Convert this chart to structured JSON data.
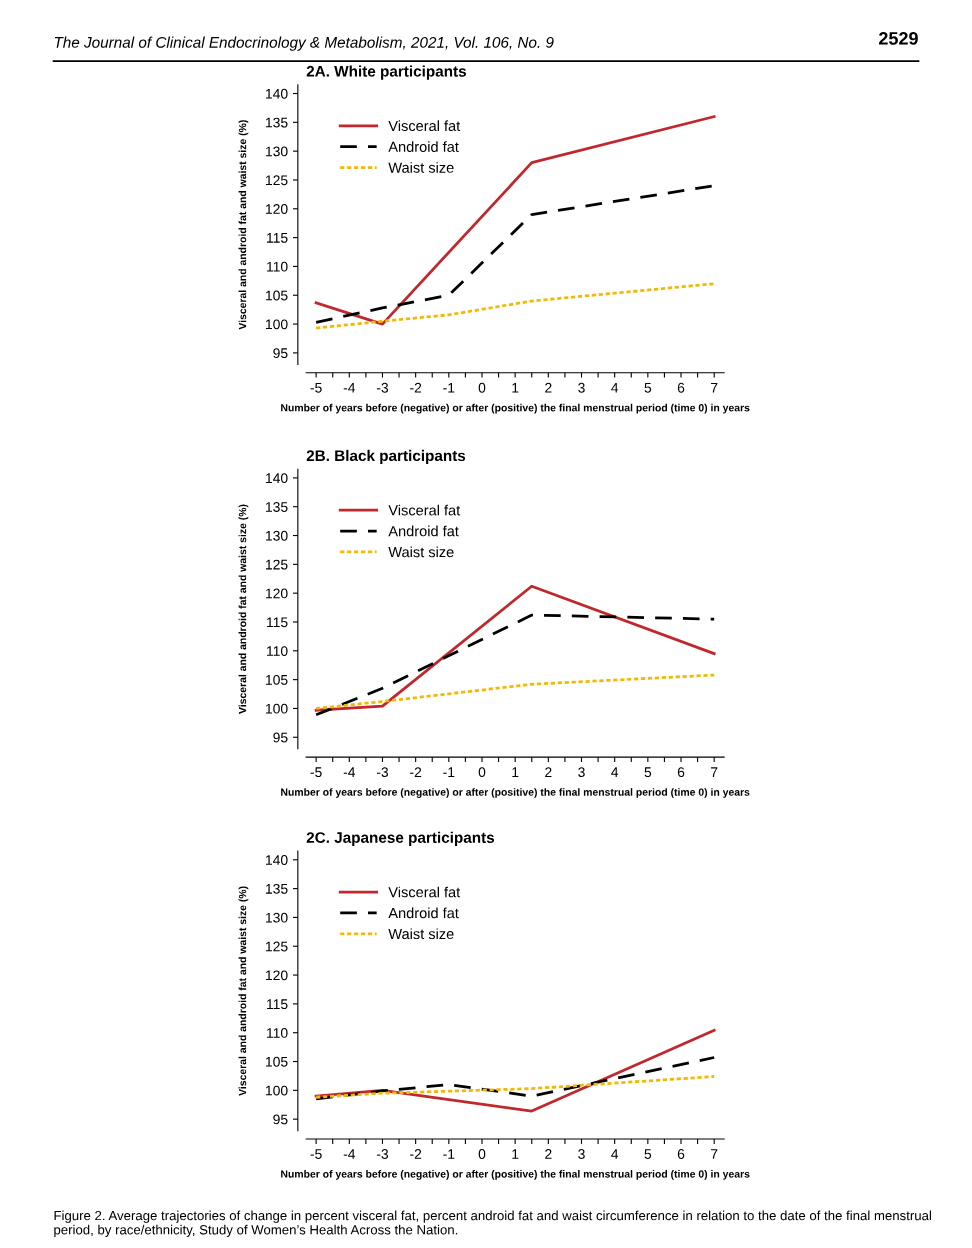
{
  "chart_data": [
    {
      "type": "line",
      "title": "2A. White participants",
      "xlabel": "Number of years before (negative) or after (positive) the final menstrual period (time 0) in years",
      "ylabel": "Visceral and android fat and waist size (%)",
      "annotations": [
        "The Journal of Clinical Endocrinology & Metabolism, 2021, Vol. 106, No. 9",
        "2529"
      ],
      "xlim": [
        -5.3,
        7.3
      ],
      "ylim": [
        93,
        141.5
      ],
      "xticks": [
        -5,
        -4,
        -3,
        -2,
        -1,
        0,
        1,
        2,
        3,
        4,
        5,
        6,
        7,
        {
          "value": -4.5,
          "label": null
        },
        {
          "value": -3.5,
          "label": null
        },
        {
          "value": -2.5,
          "label": null
        },
        {
          "value": -1.5,
          "label": null
        },
        {
          "value": -0.5,
          "label": null
        },
        {
          "value": 0.5,
          "label": null
        },
        {
          "value": 1.5,
          "label": null
        },
        {
          "value": 2.5,
          "label": null
        },
        {
          "value": 3.5,
          "label": null
        },
        {
          "value": 4.5,
          "label": null
        },
        {
          "value": 5.5,
          "label": null
        },
        {
          "value": 6.5,
          "label": null
        }
      ],
      "yticks": [
        95,
        100,
        105,
        110,
        115,
        120,
        125,
        130,
        135,
        140
      ],
      "grid": false,
      "legend": "top left",
      "series": [
        {
          "name": "Visceral fat",
          "color": "#c0282d",
          "line_style": "solid",
          "x": [
            -5,
            -3,
            1.5,
            7
          ],
          "values": [
            103.7,
            100,
            128,
            136
          ]
        },
        {
          "name": "Android fat",
          "color": "#000000",
          "line_style": "dashed",
          "x": [
            -5,
            -3,
            -1,
            1.5,
            7
          ],
          "values": [
            100.3,
            102.8,
            105,
            119,
            124
          ]
        },
        {
          "name": "Waist size",
          "color": "#f5b800",
          "line_style": "dotted",
          "x": [
            -5,
            -3,
            -1,
            1.5,
            7
          ],
          "values": [
            99.3,
            100.5,
            101.6,
            104,
            107
          ]
        }
      ]
    },
    {
      "type": "line",
      "title": "2B. Black participants",
      "xlabel": "Number of years before (negative) or after (positive) the final menstrual period (time 0) in years",
      "ylabel": "Visceral and android fat and waist size (%)",
      "xlim": [
        -5.3,
        7.3
      ],
      "ylim": [
        93,
        141.5
      ],
      "xticks": [
        -5,
        -4,
        -3,
        -2,
        -1,
        0,
        1,
        2,
        3,
        4,
        5,
        6,
        7,
        {
          "value": -4.5,
          "label": null
        },
        {
          "value": -3.5,
          "label": null
        },
        {
          "value": -2.5,
          "label": null
        },
        {
          "value": -1.5,
          "label": null
        },
        {
          "value": -0.5,
          "label": null
        },
        {
          "value": 0.5,
          "label": null
        },
        {
          "value": 1.5,
          "label": null
        },
        {
          "value": 2.5,
          "label": null
        },
        {
          "value": 3.5,
          "label": null
        },
        {
          "value": 4.5,
          "label": null
        },
        {
          "value": 5.5,
          "label": null
        },
        {
          "value": 6.5,
          "label": null
        }
      ],
      "yticks": [
        95,
        100,
        105,
        110,
        115,
        120,
        125,
        130,
        135,
        140
      ],
      "grid": false,
      "legend": "top left",
      "series": [
        {
          "name": "Visceral fat",
          "color": "#c0282d",
          "line_style": "solid",
          "x": [
            -5,
            -3,
            1.5,
            7
          ],
          "values": [
            99.7,
            100.4,
            121.2,
            109.5
          ]
        },
        {
          "name": "Android fat",
          "color": "#000000",
          "line_style": "dashed",
          "x": [
            -5,
            -3,
            1.5,
            7
          ],
          "values": [
            98.9,
            103.5,
            116.2,
            115.5
          ]
        },
        {
          "name": "Waist size",
          "color": "#f5b800",
          "line_style": "dotted",
          "x": [
            -5,
            -3,
            1.5,
            7
          ],
          "values": [
            100,
            101.2,
            104.2,
            105.8
          ]
        }
      ]
    },
    {
      "type": "line",
      "title": "2C. Japanese participants",
      "xlabel": "Number of years before (negative) or after (positive) the final menstrual period (time 0) in years",
      "ylabel": "Visceral and android fat and waist size (%)",
      "annotations": [
        "Figure 2. Average trajectories of change in percent visceral fat, percent android fat and waist circumference in relation to the date of the final menstrual period, by race/ethnicity, Study of Women’s Health Across the Nation."
      ],
      "xlim": [
        -5.3,
        7.3
      ],
      "ylim": [
        93,
        141.5
      ],
      "xticks": [
        -5,
        -4,
        -3,
        -2,
        -1,
        0,
        1,
        2,
        3,
        4,
        5,
        6,
        7,
        {
          "value": -4.5,
          "label": null
        },
        {
          "value": -3.5,
          "label": null
        },
        {
          "value": -2.5,
          "label": null
        },
        {
          "value": -1.5,
          "label": null
        },
        {
          "value": -0.5,
          "label": null
        },
        {
          "value": 0.5,
          "label": null
        },
        {
          "value": 1.5,
          "label": null
        },
        {
          "value": 2.5,
          "label": null
        },
        {
          "value": 3.5,
          "label": null
        },
        {
          "value": 4.5,
          "label": null
        },
        {
          "value": 5.5,
          "label": null
        },
        {
          "value": 6.5,
          "label": null
        }
      ],
      "yticks": [
        95,
        100,
        105,
        110,
        115,
        120,
        125,
        130,
        135,
        140
      ],
      "grid": false,
      "legend": "top left",
      "series": [
        {
          "name": "Visceral fat",
          "color": "#c0282d",
          "line_style": "solid",
          "x": [
            -5,
            -3,
            1.5,
            7
          ],
          "values": [
            99,
            100,
            96.4,
            110.4
          ]
        },
        {
          "name": "Android fat",
          "color": "#000000",
          "line_style": "dashed",
          "x": [
            -5,
            -3,
            -1,
            1.5,
            7
          ],
          "values": [
            98.5,
            99.9,
            101,
            99,
            105.7
          ]
        },
        {
          "name": "Waist size",
          "color": "#f5b800",
          "line_style": "dotted",
          "x": [
            -5,
            -3,
            1.5,
            7
          ],
          "values": [
            98.8,
            99.5,
            100.3,
            102.4
          ]
        }
      ]
    }
  ]
}
